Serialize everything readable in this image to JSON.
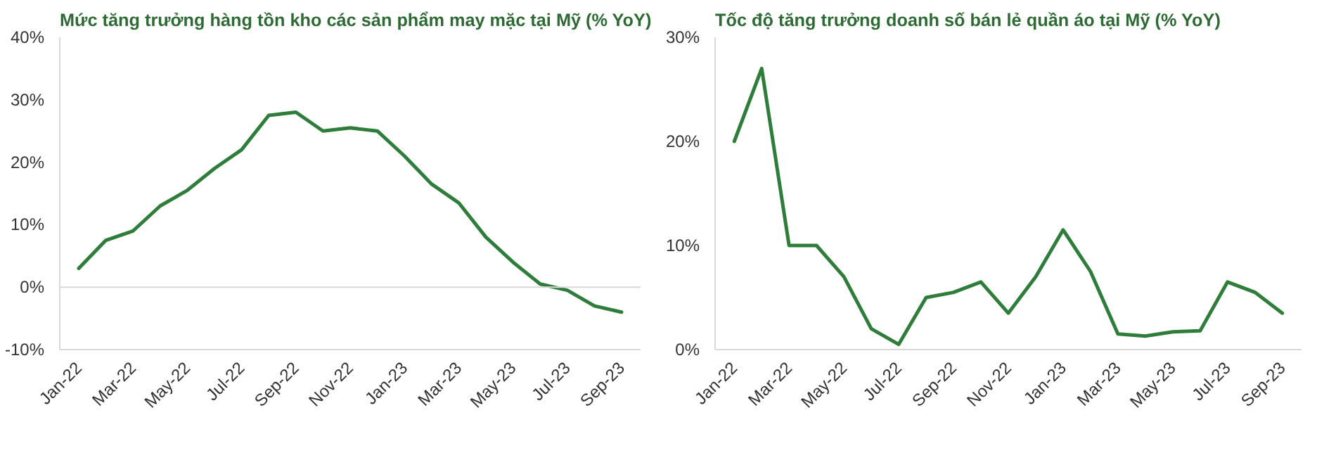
{
  "chart_data": [
    {
      "type": "line",
      "title": "Mức tăng trưởng hàng tồn kho các sản phẩm may mặc tại Mỹ (% YoY)",
      "categories": [
        "Jan-22",
        null,
        "Mar-22",
        null,
        "May-22",
        null,
        "Jul-22",
        null,
        "Sep-22",
        null,
        "Nov-22",
        null,
        "Jan-23",
        null,
        "Mar-23",
        null,
        "May-23",
        null,
        "Jul-23",
        null,
        "Sep-23"
      ],
      "series": [
        {
          "color": "#2e7d3a",
          "values": [
            3,
            7.5,
            9,
            13,
            15.5,
            19,
            22,
            27.5,
            28,
            25,
            25.5,
            25,
            21,
            16.5,
            13.5,
            8,
            4,
            0.5,
            -0.5,
            -3,
            -4
          ]
        }
      ],
      "ylim": [
        -10,
        40
      ],
      "yticks": [
        {
          "value": -10,
          "label": "-10%"
        },
        {
          "value": 0,
          "label": "0%"
        },
        {
          "value": 10,
          "label": "10%"
        },
        {
          "value": 20,
          "label": "20%"
        },
        {
          "value": 30,
          "label": "30%"
        },
        {
          "value": 40,
          "label": "40%"
        }
      ],
      "ref_lines": [
        {
          "axis": "y",
          "value": 0,
          "color": "#d9d9d9"
        }
      ],
      "grid": false
    },
    {
      "type": "line",
      "title": "Tốc độ tăng trưởng doanh số bán lẻ quần áo tại Mỹ (% YoY)",
      "categories": [
        "Jan-22",
        null,
        "Mar-22",
        null,
        "May-22",
        null,
        "Jul-22",
        null,
        "Sep-22",
        null,
        "Nov-22",
        null,
        "Jan-23",
        null,
        "Mar-23",
        null,
        "May-23",
        null,
        "Jul-23",
        null,
        "Sep-23"
      ],
      "series": [
        {
          "color": "#2e7d3a",
          "values": [
            20,
            27,
            10,
            10,
            7,
            2,
            0.5,
            5,
            5.5,
            6.5,
            3.5,
            7,
            11.5,
            7.5,
            1.5,
            1.3,
            1.7,
            1.8,
            6.5,
            5.5,
            3.5
          ]
        }
      ],
      "ylim": [
        0,
        30
      ],
      "yticks": [
        {
          "value": 0,
          "label": "0%"
        },
        {
          "value": 10,
          "label": "10%"
        },
        {
          "value": 20,
          "label": "20%"
        },
        {
          "value": 30,
          "label": "30%"
        }
      ],
      "grid": false
    }
  ]
}
